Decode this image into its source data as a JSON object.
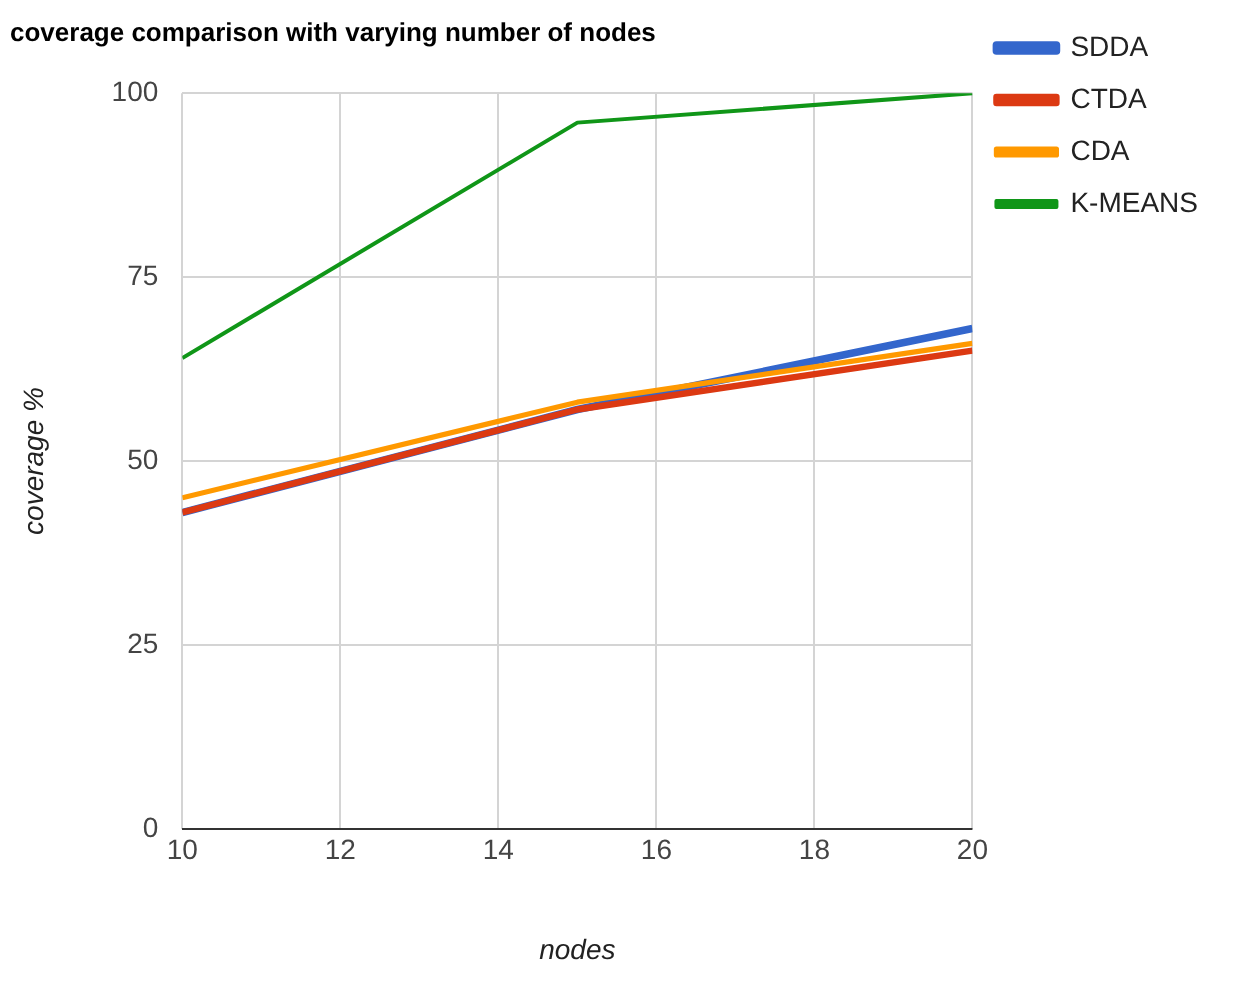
{
  "chart_data": {
    "type": "line",
    "title": "coverage comparison with varying number of nodes",
    "xlabel": "nodes",
    "ylabel": "coverage %",
    "x": [
      10,
      15,
      20
    ],
    "series": [
      {
        "name": "SDDA",
        "color": "#3366cc",
        "values": [
          43,
          57,
          68
        ]
      },
      {
        "name": "CTDA",
        "color": "#dc3912",
        "values": [
          43,
          57,
          65
        ]
      },
      {
        "name": "CDA",
        "color": "#ff9900",
        "values": [
          45,
          58,
          66
        ]
      },
      {
        "name": "K-MEANS",
        "color": "#109618",
        "values": [
          64,
          96,
          100
        ]
      }
    ],
    "xlim": [
      10,
      20
    ],
    "xticks": [
      10,
      12,
      14,
      16,
      18,
      20
    ],
    "ylim": [
      0,
      100
    ],
    "yticks": [
      0,
      25,
      50,
      75,
      100
    ],
    "grid": true,
    "legend": "right",
    "marker": "none",
    "line_style": "solid"
  }
}
